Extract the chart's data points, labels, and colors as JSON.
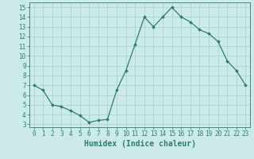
{
  "x": [
    0,
    1,
    2,
    3,
    4,
    5,
    6,
    7,
    8,
    9,
    10,
    11,
    12,
    13,
    14,
    15,
    16,
    17,
    18,
    19,
    20,
    21,
    22,
    23
  ],
  "y": [
    7.0,
    6.5,
    5.0,
    4.8,
    4.4,
    3.9,
    3.2,
    3.4,
    3.5,
    6.5,
    8.5,
    11.2,
    14.0,
    13.0,
    14.0,
    15.0,
    14.0,
    13.5,
    12.7,
    12.3,
    11.5,
    9.5,
    8.5,
    7.0
  ],
  "line_color": "#2d7d6e",
  "marker": "D",
  "marker_size": 2.0,
  "bg_color": "#cceaea",
  "grid_color": "#aad4d4",
  "xlabel": "Humidex (Indice chaleur)",
  "xlim": [
    -0.5,
    23.5
  ],
  "ylim": [
    2.7,
    15.5
  ],
  "yticks": [
    3,
    4,
    5,
    6,
    7,
    8,
    9,
    10,
    11,
    12,
    13,
    14,
    15
  ],
  "xticks": [
    0,
    1,
    2,
    3,
    4,
    5,
    6,
    7,
    8,
    9,
    10,
    11,
    12,
    13,
    14,
    15,
    16,
    17,
    18,
    19,
    20,
    21,
    22,
    23
  ],
  "tick_label_fontsize": 5.5,
  "xlabel_fontsize": 7.0
}
